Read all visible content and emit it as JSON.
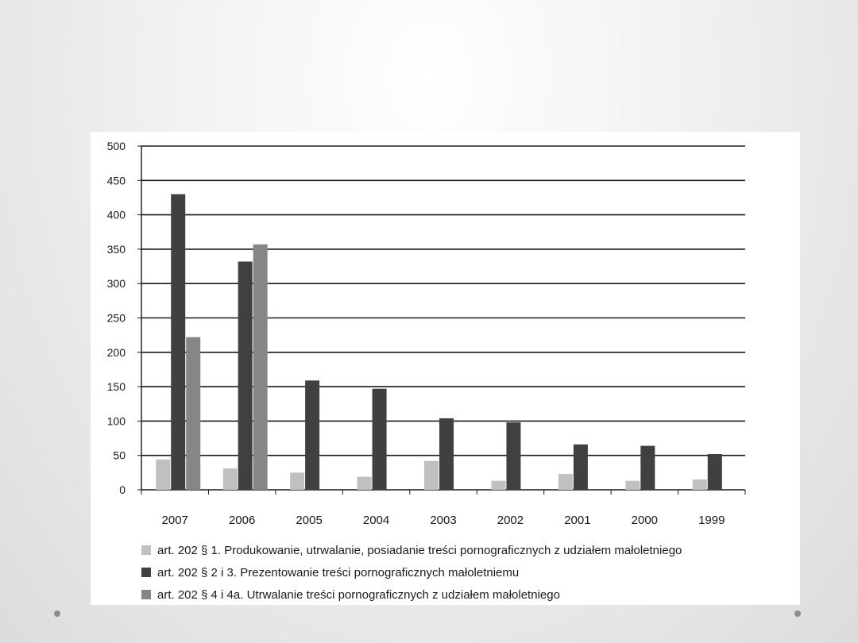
{
  "chart_data": {
    "type": "bar",
    "categories": [
      "2007",
      "2006",
      "2005",
      "2004",
      "2003",
      "2002",
      "2001",
      "2000",
      "1999"
    ],
    "series": [
      {
        "name": "art. 202 § 1. Produkowanie, utrwalanie, posiadanie treści pornograficznych z udziałem małoletniego",
        "color": "#c0c0c0",
        "values": [
          44,
          31,
          25,
          19,
          42,
          13,
          23,
          13,
          15
        ]
      },
      {
        "name": "art. 202 § 2 i 3. Prezentowanie treści pornograficznych małoletniemu",
        "color": "#404040",
        "values": [
          430,
          332,
          159,
          147,
          104,
          98,
          66,
          64,
          52
        ]
      },
      {
        "name": "art. 202 § 4 i 4a. Utrwalanie treści pornograficznych z udziałem małoletniego",
        "color": "#868686",
        "values": [
          222,
          357,
          0,
          0,
          0,
          0,
          0,
          0,
          0
        ]
      }
    ],
    "ylim": [
      0,
      500
    ],
    "yticks": [
      0,
      50,
      100,
      150,
      200,
      250,
      300,
      350,
      400,
      450,
      500
    ],
    "grid": true,
    "legend_position": "bottom"
  }
}
